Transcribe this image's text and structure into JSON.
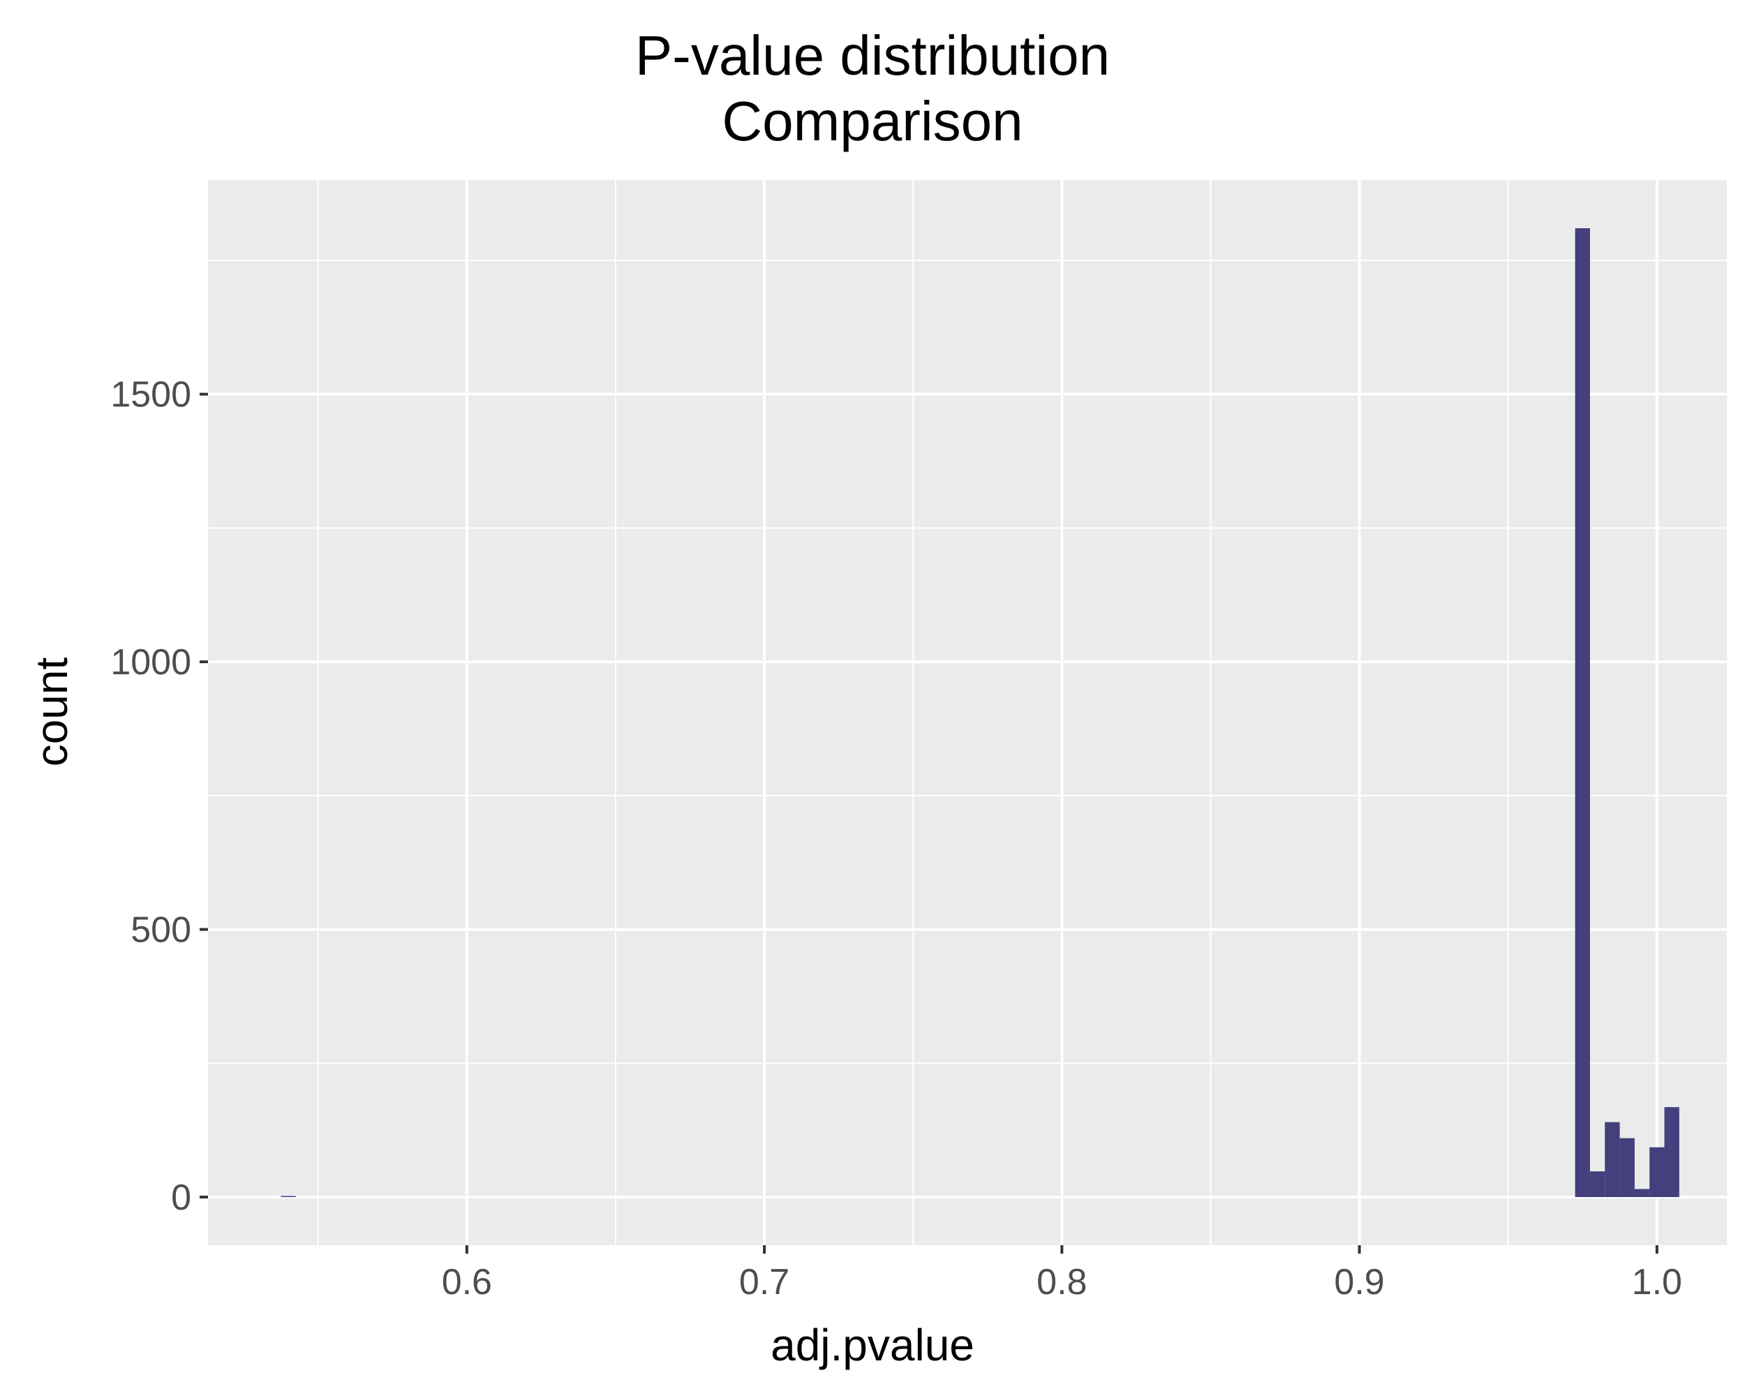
{
  "chart_data": {
    "type": "bar",
    "title": [
      "P-value distribution",
      "Comparison"
    ],
    "xlabel": "adj.pvalue",
    "ylabel": "count",
    "xlim": [
      0.513,
      1.0235
    ],
    "ylim": [
      -90,
      1900
    ],
    "x_ticks": [
      {
        "value": 0.6,
        "label": "0.6"
      },
      {
        "value": 0.7,
        "label": "0.7"
      },
      {
        "value": 0.8,
        "label": "0.8"
      },
      {
        "value": 0.9,
        "label": "0.9"
      },
      {
        "value": 1.0,
        "label": "1.0"
      }
    ],
    "x_minor_gridlines": [
      0.55,
      0.65,
      0.75,
      0.85,
      0.95
    ],
    "y_ticks": [
      {
        "value": 0,
        "label": "0"
      },
      {
        "value": 500,
        "label": "500"
      },
      {
        "value": 1000,
        "label": "1000"
      },
      {
        "value": 1500,
        "label": "1500"
      }
    ],
    "y_minor_gridlines": [
      250,
      750,
      1250,
      1750
    ],
    "grid": true,
    "bin_width": 0.005,
    "bins": [
      {
        "x0": 0.5375,
        "x1": 0.5425,
        "count": 1
      },
      {
        "x0": 0.9725,
        "x1": 0.9775,
        "count": 1810
      },
      {
        "x0": 0.9775,
        "x1": 0.9825,
        "count": 48
      },
      {
        "x0": 0.9825,
        "x1": 0.9875,
        "count": 140
      },
      {
        "x0": 0.9875,
        "x1": 0.9925,
        "count": 110
      },
      {
        "x0": 0.9925,
        "x1": 0.9975,
        "count": 15
      },
      {
        "x0": 0.9975,
        "x1": 1.0025,
        "count": 93
      },
      {
        "x0": 1.0025,
        "x1": 1.0075,
        "count": 168
      }
    ],
    "fill_color": "#443F7D",
    "panel_color": "#EBEBEB",
    "grid_color": "#FFFFFF",
    "tick_label_color": "#4D4D4D",
    "tick_color": "#333333"
  }
}
